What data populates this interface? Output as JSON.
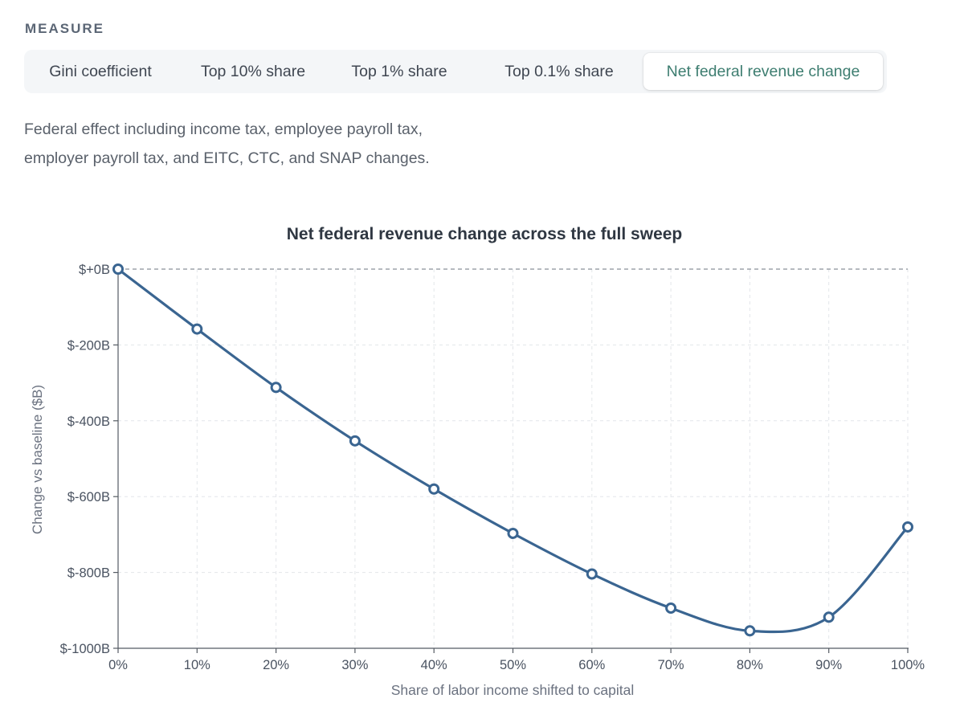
{
  "measure": {
    "heading": "MEASURE",
    "tabs": [
      {
        "label": "Gini coefficient",
        "active": false
      },
      {
        "label": "Top 10% share",
        "active": false
      },
      {
        "label": "Top 1% share",
        "active": false
      },
      {
        "label": "Top 0.1% share",
        "active": false
      },
      {
        "label": "Net federal revenue change",
        "active": true
      }
    ]
  },
  "description": "Federal effect including income tax, employee payroll tax, employer payroll tax, and EITC, CTC, and SNAP changes.",
  "colors": {
    "accent": "#3d7d70",
    "line": "#3a6591",
    "grid": "#e3e6ea",
    "axis": "#555b63"
  },
  "chart_data": {
    "type": "line",
    "title": "Net federal revenue change across the full sweep",
    "xlabel": "Share of labor income shifted to capital",
    "ylabel": "Change vs baseline ($B)",
    "x": [
      0,
      10,
      20,
      30,
      40,
      50,
      60,
      70,
      80,
      90,
      100
    ],
    "x_tick_labels": [
      "0%",
      "10%",
      "20%",
      "30%",
      "40%",
      "50%",
      "60%",
      "70%",
      "80%",
      "90%",
      "100%"
    ],
    "y_ticks": [
      0,
      -200,
      -400,
      -600,
      -800,
      -1000
    ],
    "y_tick_labels": [
      "$+0B",
      "$-200B",
      "$-400B",
      "$-600B",
      "$-800B",
      "$-1000B"
    ],
    "xlim": [
      0,
      100
    ],
    "ylim": [
      -1000,
      0
    ],
    "grid": true,
    "zero_line": "dashed",
    "series": [
      {
        "values": [
          0,
          -158,
          -312,
          -453,
          -580,
          -697,
          -804,
          -894,
          -954,
          -918,
          -680
        ]
      }
    ]
  }
}
